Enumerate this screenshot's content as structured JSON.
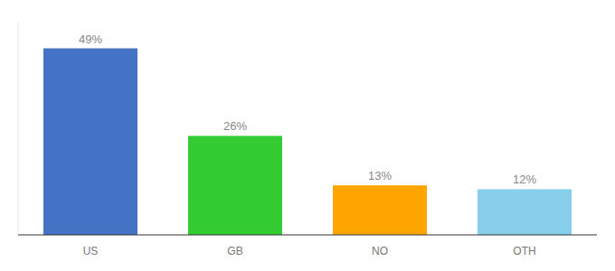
{
  "chart_data": {
    "type": "bar",
    "categories": [
      "US",
      "GB",
      "NO",
      "OTH"
    ],
    "values": [
      49,
      26,
      13,
      12
    ],
    "value_labels": [
      "49%",
      "26%",
      "13%",
      "12%"
    ],
    "colors": [
      "#4472C4",
      "#33CC33",
      "#FFA500",
      "#87CEEB"
    ],
    "ylim": [
      0,
      56
    ],
    "data_labels": true,
    "tick_labels": "x"
  }
}
